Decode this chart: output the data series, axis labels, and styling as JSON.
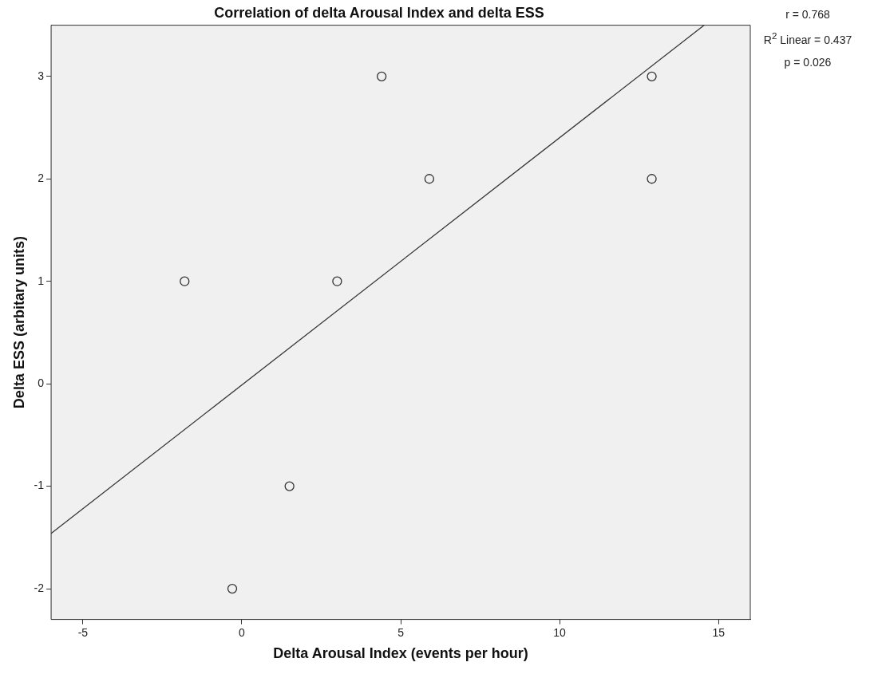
{
  "chart_data": {
    "type": "scatter",
    "title": "Correlation of delta Arousal Index and delta ESS",
    "xlabel": "Delta Arousal Index (events per hour)",
    "ylabel": "Delta ESS (arbitary units)",
    "xlim": [
      -6,
      16
    ],
    "ylim": [
      -2.3,
      3.5
    ],
    "xticks": [
      -5,
      0,
      5,
      10,
      15
    ],
    "yticks": [
      -2,
      -1,
      0,
      1,
      2,
      3
    ],
    "legend": false,
    "marker": "circle",
    "series": [
      {
        "color": "#333333",
        "x": [
          -1.8,
          -0.3,
          1.5,
          3,
          4.4,
          5.9,
          12.9,
          12.9
        ],
        "values": [
          1,
          -2,
          -1,
          1,
          3,
          2,
          3,
          2
        ]
      },
      {
        "type": "line",
        "color": "#333333",
        "marker": "none",
        "line_style": "solid",
        "x": [
          -6,
          14.55
        ],
        "values": [
          -1.46,
          3.5
        ]
      }
    ],
    "annotations": [
      "r = 0.768",
      "R$^{2}$ Linear = 0.437",
      "p = 0.026"
    ]
  }
}
